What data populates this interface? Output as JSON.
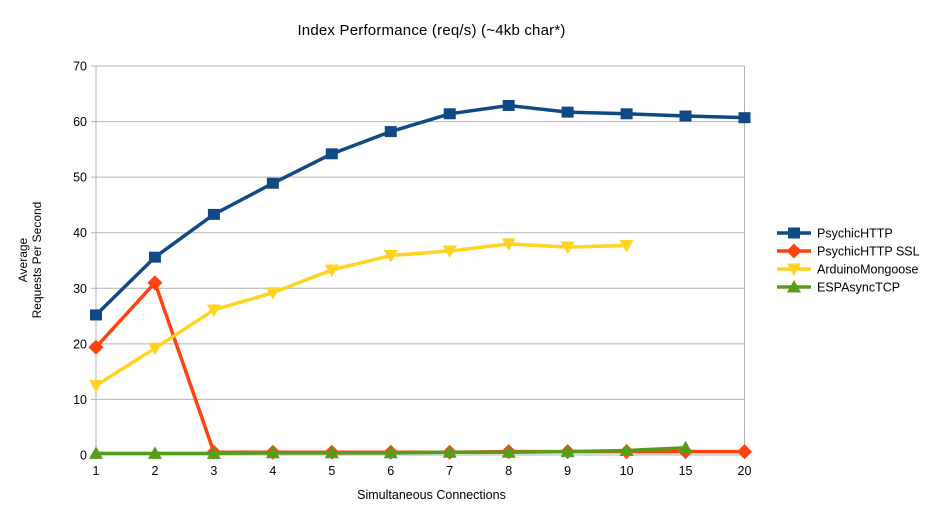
{
  "chart_data": {
    "type": "line",
    "title": "Index Performance (req/s) (~4kb char*)",
    "xlabel": "Simultaneous Connections",
    "ylabel": "Average\nRequests Per Second",
    "categories": [
      "1",
      "2",
      "3",
      "4",
      "5",
      "6",
      "7",
      "8",
      "9",
      "10",
      "15",
      "20"
    ],
    "y_ticks": [
      0,
      10,
      20,
      30,
      40,
      50,
      60,
      70
    ],
    "ylim": [
      0,
      70
    ],
    "grid": true,
    "legend_position": "right",
    "background_color": "#ffffff",
    "grid_color": "#b3b3b3",
    "text_color": "#000000",
    "series": [
      {
        "name": "PsychicHTTP",
        "color": "#114986",
        "marker": "square",
        "values": [
          25.2,
          35.6,
          43.3,
          48.9,
          54.2,
          58.2,
          61.4,
          62.9,
          61.7,
          61.4,
          61.0,
          60.7
        ]
      },
      {
        "name": "PsychicHTTP SSL",
        "color": "#FF420E",
        "marker": "diamond",
        "values": [
          19.4,
          31.0,
          0.5,
          0.5,
          0.5,
          0.5,
          0.5,
          0.6,
          0.6,
          0.6,
          0.6,
          0.6
        ]
      },
      {
        "name": "ArduinoMongoose",
        "color": "#FFD320",
        "marker": "triangle-down",
        "values": [
          12.5,
          19.2,
          26.1,
          29.2,
          33.3,
          35.9,
          36.7,
          38.0,
          37.4,
          37.7
        ]
      },
      {
        "name": "ESPAsyncTCP",
        "color": "#579D1C",
        "marker": "triangle-up",
        "values": [
          0.3,
          0.3,
          0.3,
          0.4,
          0.4,
          0.4,
          0.5,
          0.5,
          0.6,
          0.8,
          1.3
        ]
      }
    ]
  }
}
